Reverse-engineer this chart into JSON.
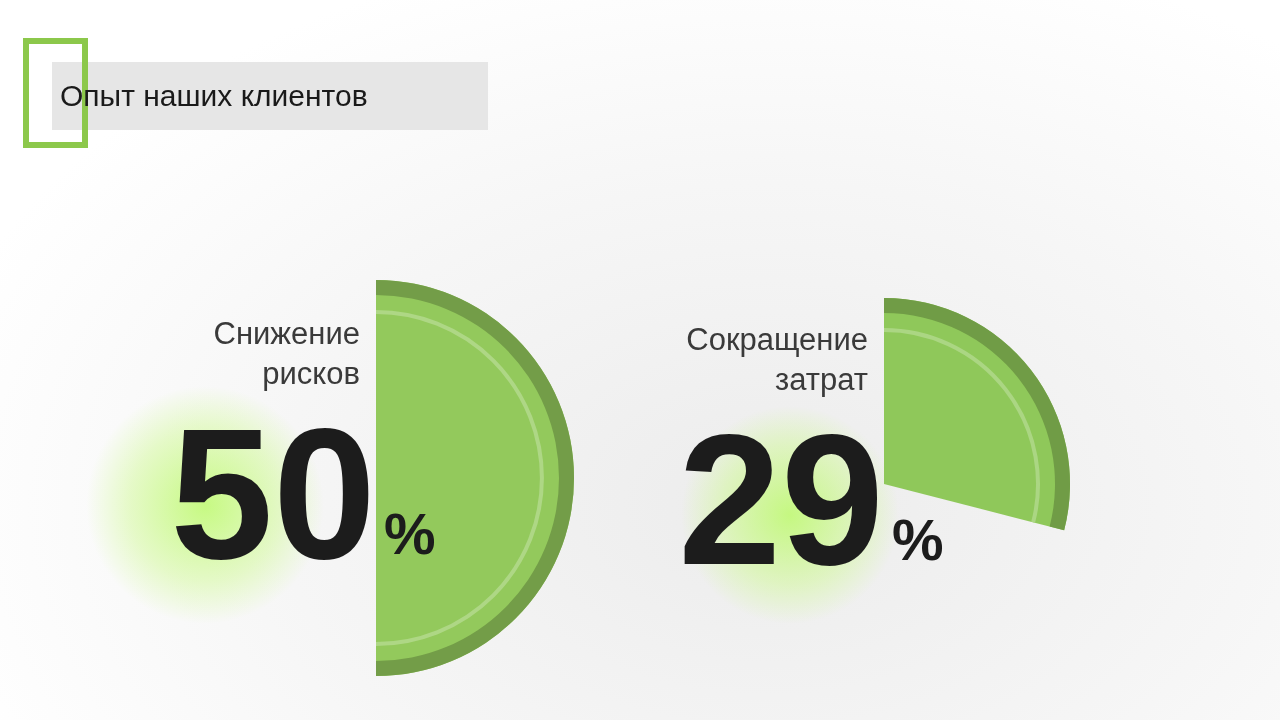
{
  "chart_data": [
    {
      "type": "pie",
      "title": "Опыт наших клиентов",
      "categories": [
        "Снижение рисков"
      ],
      "values": [
        50
      ],
      "colors": [
        "#93c95c"
      ],
      "value_labels": [
        "50%"
      ]
    },
    {
      "type": "pie",
      "categories": [
        "Сокращение затрат"
      ],
      "values": [
        29
      ],
      "colors": [
        "#8fc85a"
      ],
      "value_labels": [
        "29%"
      ]
    }
  ]
}
